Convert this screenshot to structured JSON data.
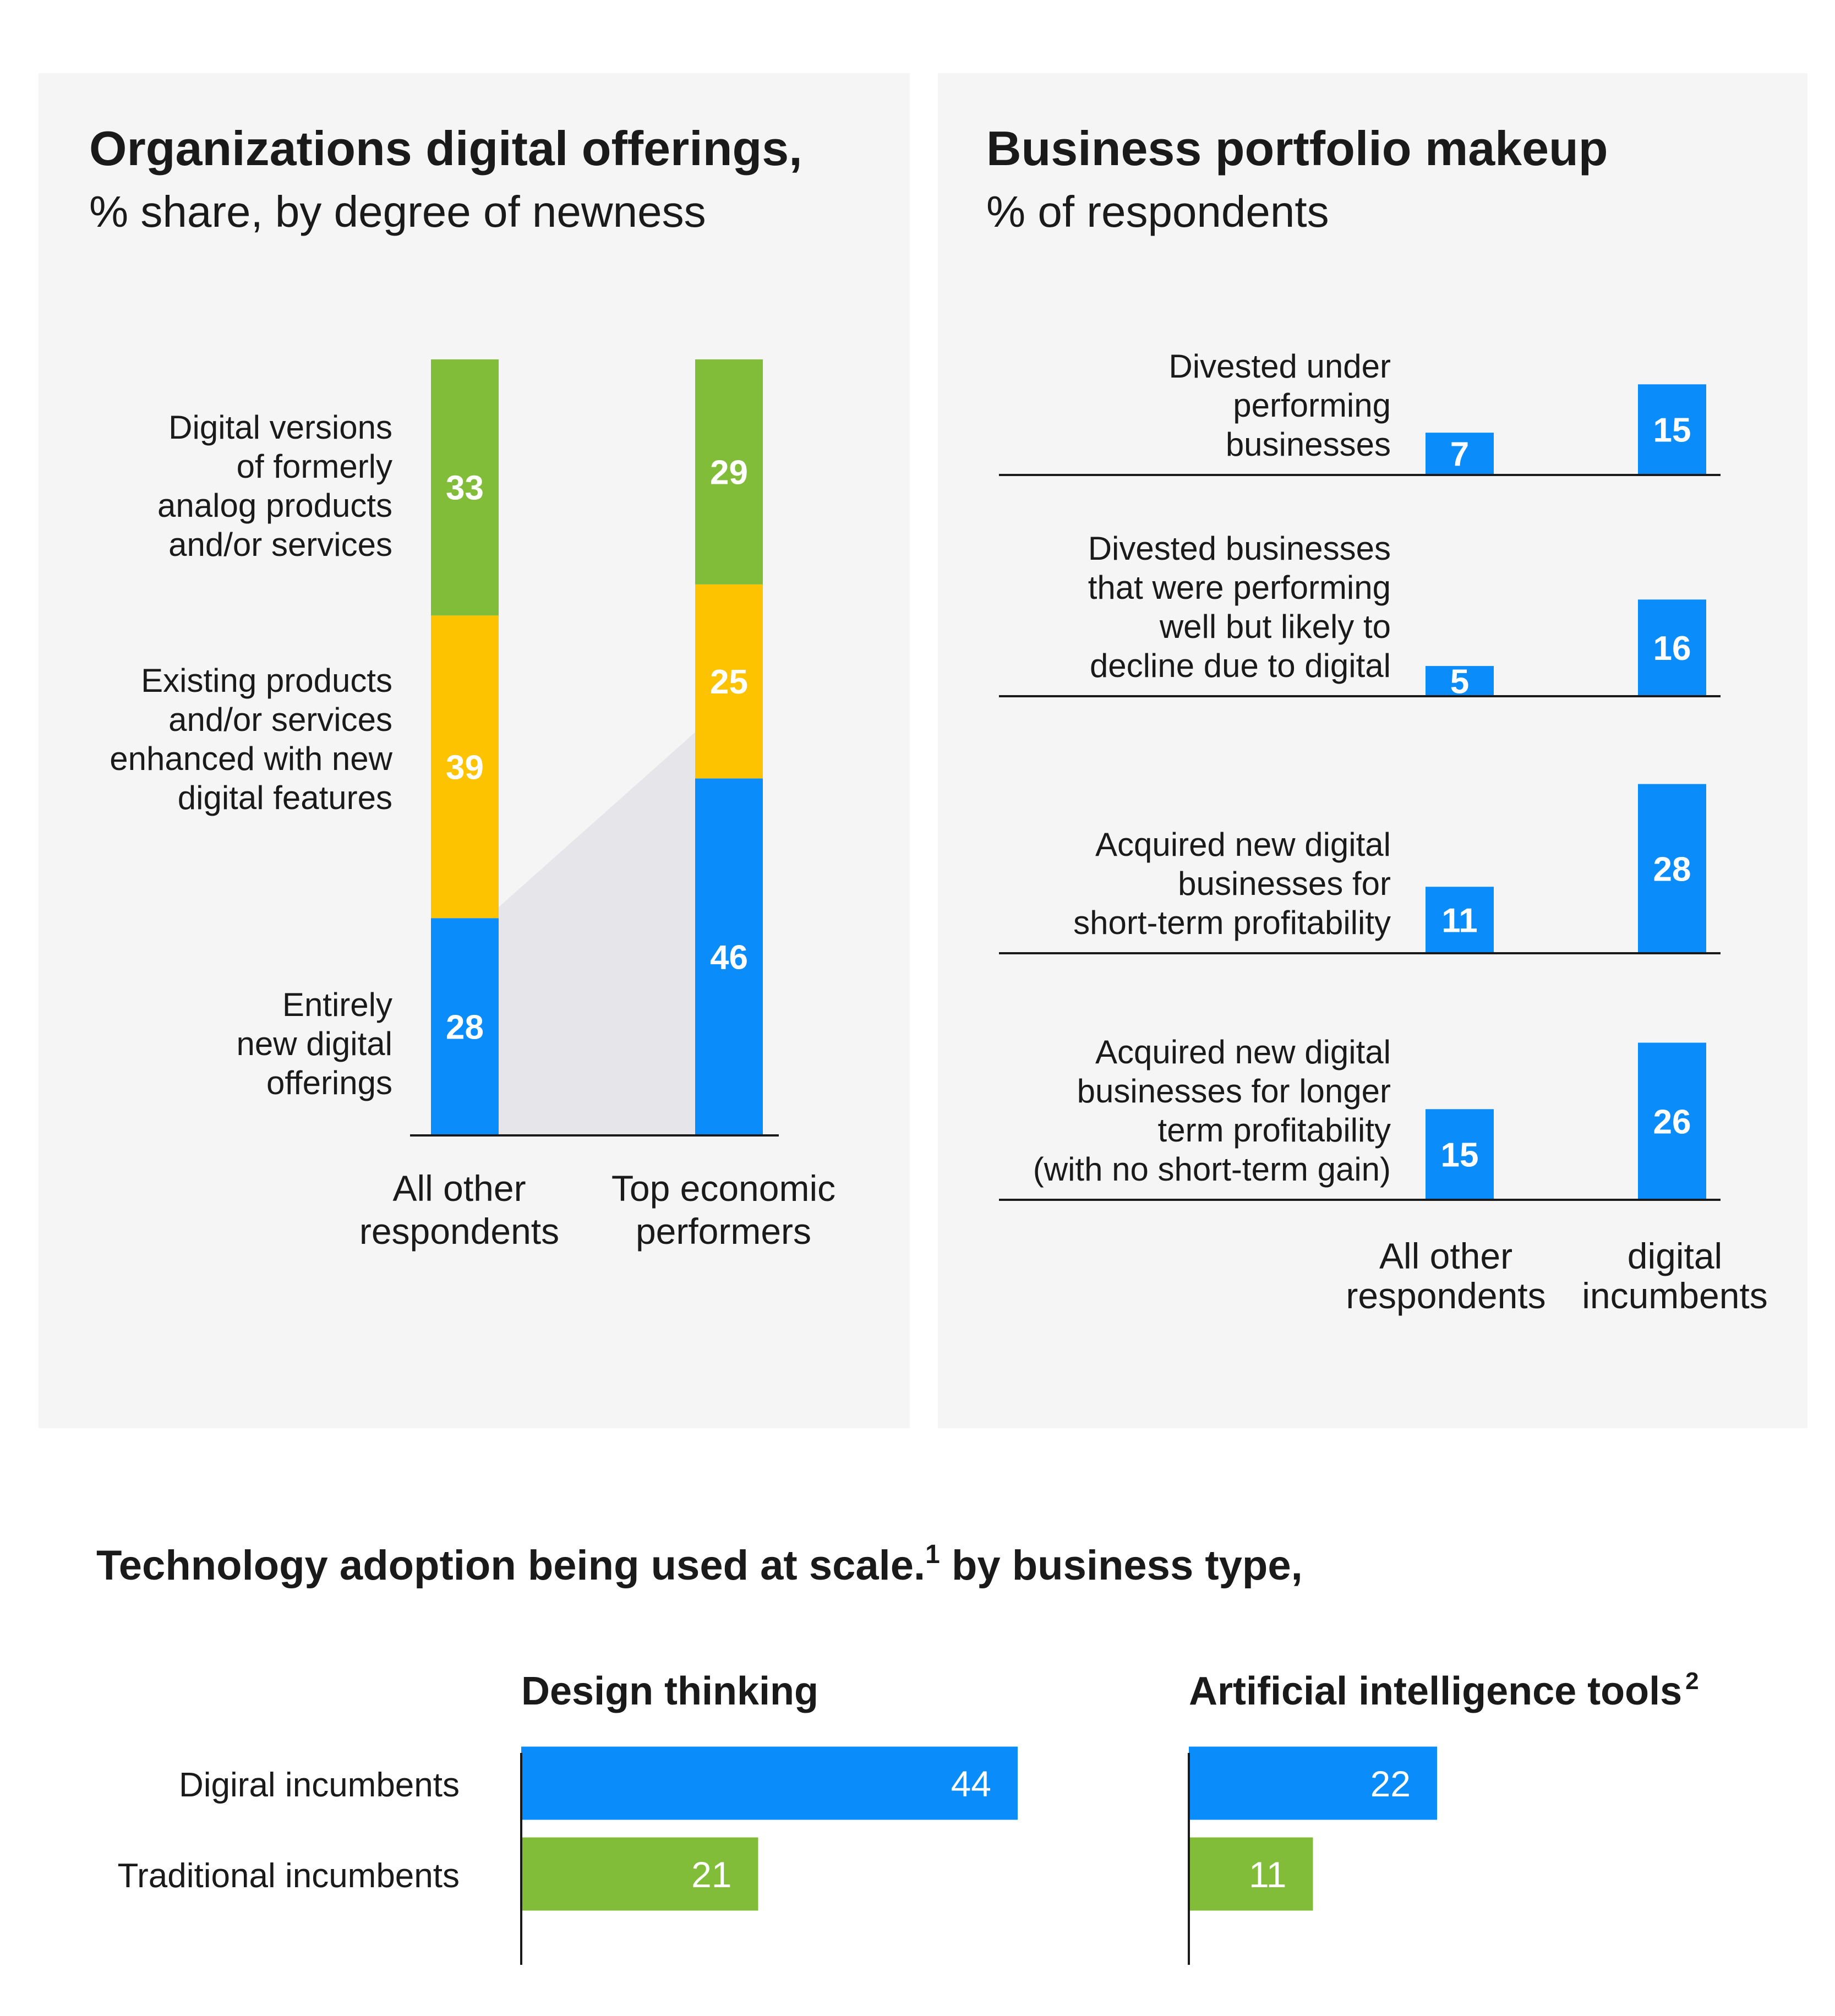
{
  "colors": {
    "panel_bg": "#f5f5f5",
    "blue": "#0a8cfa",
    "yellow": "#fdc300",
    "green": "#82bd3a",
    "connector": "#e6e6ea",
    "axis": "#1a1a1a",
    "text": "#1a1a1a",
    "label_on_bar": "#ffffff"
  },
  "chart_data": [
    {
      "type": "bar",
      "stacked": true,
      "title": "Organizations digital offerings,",
      "subtitle": "% share, by degree of newness",
      "categories": [
        [
          "All other",
          "respondents"
        ],
        [
          "Top economic",
          "performers"
        ]
      ],
      "series": [
        {
          "name": [
            "Entirely",
            "new digital",
            "offerings"
          ],
          "color": "#0a8cfa",
          "values": [
            28,
            46
          ]
        },
        {
          "name": [
            "Existing products",
            "and/or services",
            "enhanced with new",
            "digital features"
          ],
          "color": "#fdc300",
          "values": [
            39,
            25
          ]
        },
        {
          "name": [
            "Digital versions",
            "of formerly",
            "analog products",
            "and/or services"
          ],
          "color": "#82bd3a",
          "values": [
            33,
            29
          ]
        }
      ],
      "ylim": [
        0,
        100
      ]
    },
    {
      "type": "bar",
      "title": "Business portfolio makeup",
      "subtitle": "% of respondents",
      "groups": [
        {
          "label": [
            "Divested under",
            "performing",
            "businesses"
          ],
          "values": [
            7,
            15
          ]
        },
        {
          "label": [
            "Divested businesses",
            "that were performing",
            "well but likely to",
            "decline due to digital"
          ],
          "values": [
            5,
            16
          ]
        },
        {
          "label": [
            "Acquired new digital",
            "businesses for",
            "short-term profitability"
          ],
          "values": [
            11,
            28
          ]
        },
        {
          "label": [
            "Acquired new digital",
            "businesses for longer",
            "term profitability",
            "(with no short-term gain)"
          ],
          "values": [
            15,
            26
          ]
        }
      ],
      "columns": [
        [
          "All other",
          "respondents"
        ],
        [
          "digital",
          "incumbents"
        ]
      ],
      "color": "#0a8cfa"
    },
    {
      "type": "bar",
      "orientation": "horizontal",
      "title": "Technology adoption being used at scale.",
      "title_superscript": "1",
      "title_tail": " by business type,",
      "categories": [
        "Digiral incumbents",
        "Traditional incumbents"
      ],
      "colors": [
        "#0a8cfa",
        "#82bd3a"
      ],
      "panels": [
        {
          "title": "Design thinking",
          "superscript": "",
          "values": [
            44,
            21
          ]
        },
        {
          "title": "Artificial intelligence tools",
          "superscript": "2",
          "values": [
            22,
            11
          ]
        }
      ]
    }
  ]
}
